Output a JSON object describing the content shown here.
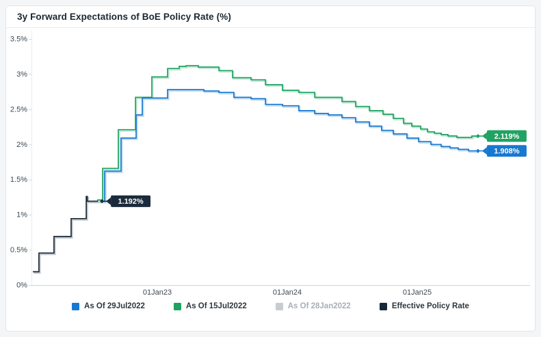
{
  "chart_data": {
    "type": "step-line",
    "title": "3y Forward Expectations of BoE Policy Rate (%)",
    "y_axis": {
      "unit": "%",
      "min": 0,
      "max": 3.5,
      "ticks": [
        {
          "label": "0%",
          "value": 0
        },
        {
          "label": "0.5%",
          "value": 0.5
        },
        {
          "label": "1%",
          "value": 1
        },
        {
          "label": "1.5%",
          "value": 1.5
        },
        {
          "label": "2%",
          "value": 2
        },
        {
          "label": "2.5%",
          "value": 2.5
        },
        {
          "label": "3%",
          "value": 3
        },
        {
          "label": "3.5%",
          "value": 3.5
        }
      ]
    },
    "x_axis": {
      "t_unit": "years since 01Jan2022",
      "ticks": [
        {
          "label": "01Jan23",
          "t": 1.0
        },
        {
          "label": "01Jan24",
          "t": 2.0
        },
        {
          "label": "01Jan25",
          "t": 3.0
        }
      ]
    },
    "series": [
      {
        "name": "Effective Policy Rate",
        "color": "#1b2b3b",
        "active": true,
        "end_label": "1.192%",
        "end_t": 0.574,
        "points": [
          [
            0.042,
            0.19
          ],
          [
            0.089,
            0.455
          ],
          [
            0.205,
            0.69
          ],
          [
            0.337,
            0.945
          ],
          [
            0.453,
            1.26
          ],
          [
            0.461,
            1.192
          ]
        ]
      },
      {
        "name": "As Of 15Jul2022",
        "color": "#1fa263",
        "active": true,
        "end_label": "2.119%",
        "end_t": 3.468,
        "points": [
          [
            0.537,
            1.21
          ],
          [
            0.579,
            1.66
          ],
          [
            0.7,
            2.21
          ],
          [
            0.832,
            2.67
          ],
          [
            0.958,
            2.96
          ],
          [
            1.079,
            3.08
          ],
          [
            1.168,
            3.11
          ],
          [
            1.221,
            3.12
          ],
          [
            1.316,
            3.1
          ],
          [
            1.474,
            3.05
          ],
          [
            1.579,
            2.95
          ],
          [
            1.721,
            2.92
          ],
          [
            1.832,
            2.85
          ],
          [
            1.963,
            2.77
          ],
          [
            2.089,
            2.74
          ],
          [
            2.211,
            2.67
          ],
          [
            2.421,
            2.61
          ],
          [
            2.526,
            2.54
          ],
          [
            2.632,
            2.48
          ],
          [
            2.737,
            2.43
          ],
          [
            2.816,
            2.37
          ],
          [
            2.895,
            2.3
          ],
          [
            2.958,
            2.26
          ],
          [
            3.026,
            2.22
          ],
          [
            3.079,
            2.18
          ],
          [
            3.132,
            2.16
          ],
          [
            3.184,
            2.14
          ],
          [
            3.237,
            2.12
          ],
          [
            3.305,
            2.1
          ],
          [
            3.42,
            2.119
          ]
        ]
      },
      {
        "name": "As Of 29Jul2022",
        "color": "#1778cf",
        "active": true,
        "end_label": "1.908%",
        "end_t": 3.468,
        "points": [
          [
            0.574,
            1.19
          ],
          [
            0.595,
            1.62
          ],
          [
            0.721,
            2.09
          ],
          [
            0.837,
            2.42
          ],
          [
            0.884,
            2.66
          ],
          [
            1.079,
            2.78
          ],
          [
            1.358,
            2.76
          ],
          [
            1.474,
            2.74
          ],
          [
            1.589,
            2.67
          ],
          [
            1.721,
            2.65
          ],
          [
            1.832,
            2.57
          ],
          [
            1.963,
            2.55
          ],
          [
            2.089,
            2.48
          ],
          [
            2.211,
            2.44
          ],
          [
            2.316,
            2.42
          ],
          [
            2.421,
            2.38
          ],
          [
            2.526,
            2.32
          ],
          [
            2.632,
            2.26
          ],
          [
            2.726,
            2.2
          ],
          [
            2.816,
            2.15
          ],
          [
            2.921,
            2.09
          ],
          [
            3.011,
            2.04
          ],
          [
            3.105,
            2.0
          ],
          [
            3.184,
            1.97
          ],
          [
            3.253,
            1.95
          ],
          [
            3.316,
            1.93
          ],
          [
            3.395,
            1.908
          ]
        ]
      },
      {
        "name": "As Of 28Jan2022",
        "color": "#c9cccf",
        "active": false,
        "points": []
      }
    ],
    "legend": [
      {
        "label": "As Of 29Jul2022",
        "color": "#1778cf",
        "active": true
      },
      {
        "label": "As Of 15Jul2022",
        "color": "#1fa263",
        "active": true
      },
      {
        "label": "As Of 28Jan2022",
        "color": "#c9cccf",
        "active": false
      },
      {
        "label": "Effective Policy Rate",
        "color": "#16293a",
        "active": true
      }
    ],
    "layout_hints": {
      "legend_position": "bottom",
      "grid": "off",
      "end_labels": "right"
    }
  }
}
